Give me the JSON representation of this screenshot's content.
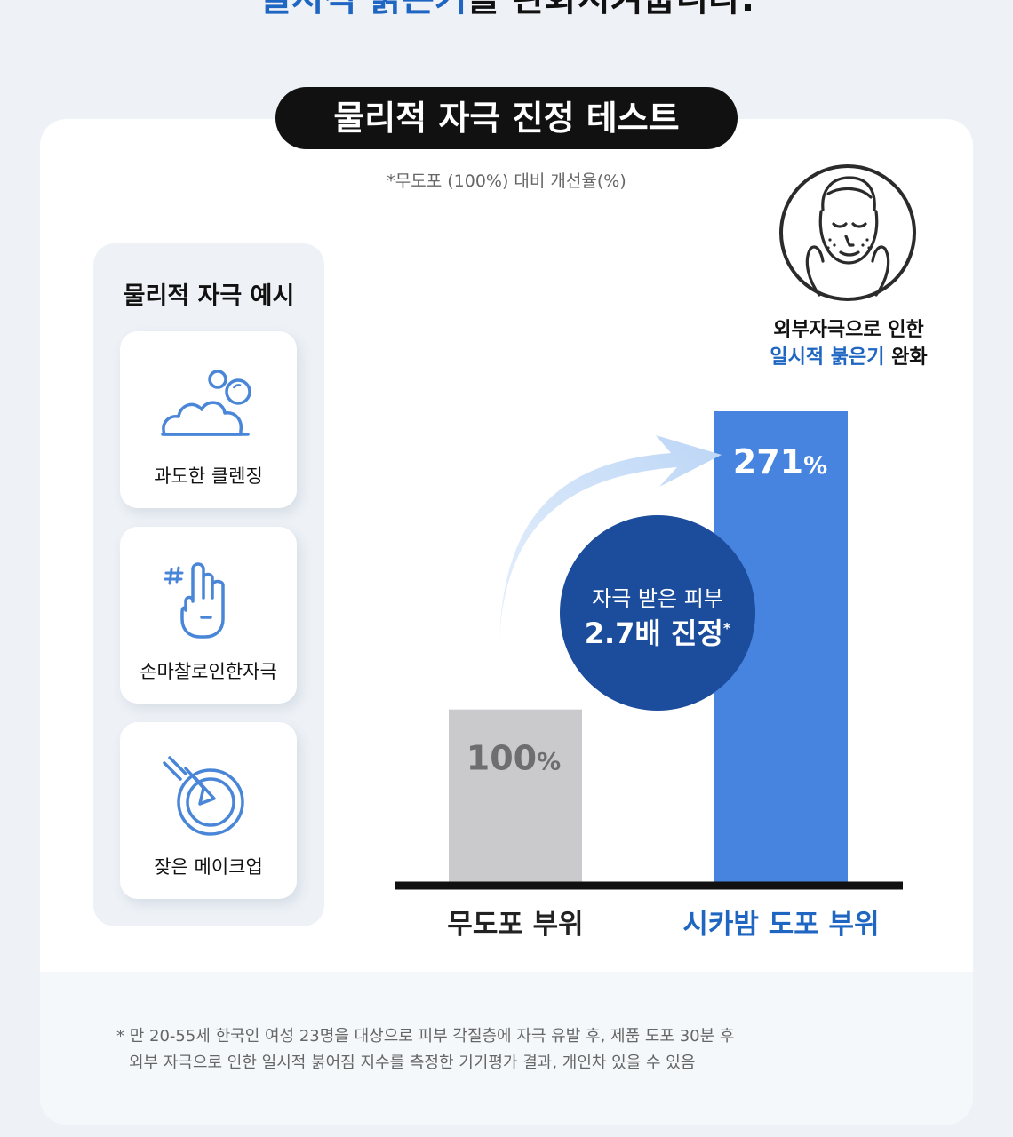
{
  "headline": {
    "accent": "일시적 붉은기",
    "rest": "를 완화시켜줍니다."
  },
  "title": "물리적 자극 진정 테스트",
  "subnote": "*무도포 (100%) 대비 개선율(%)",
  "examples": {
    "title": "물리적 자극 예시",
    "items": [
      {
        "label": "과도한 클렌징",
        "icon": "foam-bubble-icon"
      },
      {
        "label": "손마찰로인한자극",
        "icon": "finger-rub-icon"
      },
      {
        "label": "잦은 메이크업",
        "icon": "makeup-brush-icon"
      }
    ]
  },
  "face_caption": {
    "line1": "외부자극으로 인한",
    "line2_accent": "일시적 붉은기",
    "line2_rest": " 완화"
  },
  "stat": {
    "line1": "자극 받은 피부",
    "line2": "2.7배 진정",
    "mark": "*"
  },
  "colors": {
    "accent": "#1f66c2",
    "bar_untreated": "#cacacd",
    "bar_treated": "#4684e0",
    "circle": "#1c4c9c",
    "arrow": "#c9dff8"
  },
  "chart_data": {
    "type": "bar",
    "categories": [
      "무도포 부위",
      "시카밤 도포 부위"
    ],
    "values": [
      100,
      271
    ],
    "value_labels": [
      "100",
      "271"
    ],
    "unit": "%",
    "ylim": [
      0,
      271
    ],
    "grid": false,
    "legend": "none"
  },
  "footnote": {
    "line1": "* 만 20-55세 한국인 여성 23명을 대상으로 피부 각질층에 자극 유발 후, 제품 도포 30분 후",
    "line2": "외부 자극으로 인한 일시적 붉어짐 지수를 측정한 기기평가 결과, 개인차 있을 수 있음"
  }
}
